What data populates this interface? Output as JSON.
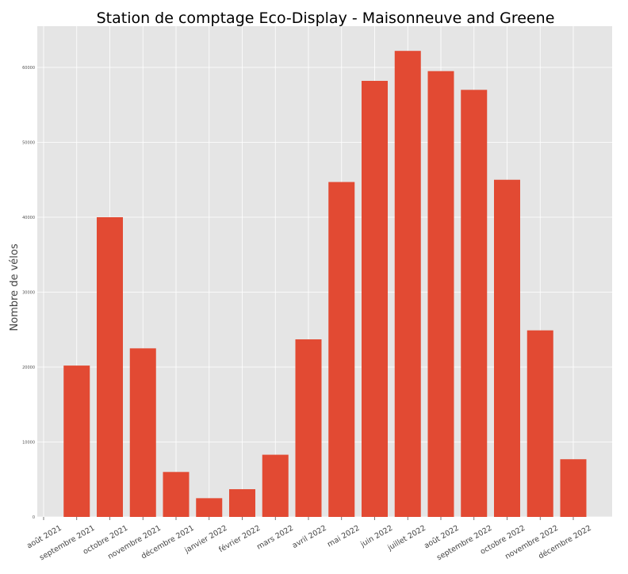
{
  "chart_data": {
    "type": "bar",
    "title": "Station de comptage Eco-Display - Maisonneuve and Greene",
    "xlabel": "",
    "ylabel": "Nombre de vélos",
    "categories": [
      "août 2021",
      "septembre 2021",
      "octobre 2021",
      "novembre 2021",
      "décembre 2021",
      "janvier 2022",
      "février 2022",
      "mars 2022",
      "avril 2022",
      "mai 2022",
      "juin 2022",
      "juillet 2022",
      "août 2022",
      "septembre 2022",
      "octobre 2022",
      "novembre 2022",
      "décembre 2022"
    ],
    "values": [
      0,
      20200,
      40000,
      22500,
      6000,
      2500,
      3700,
      8300,
      23700,
      44700,
      58200,
      62200,
      59500,
      57000,
      45000,
      24900,
      7700
    ],
    "ylim": [
      0,
      65500
    ],
    "yticks": [
      0,
      10000,
      20000,
      30000,
      40000,
      50000,
      60000
    ],
    "grid": true,
    "colors": {
      "bar": "#e24a33",
      "background": "#e5e5e5",
      "grid": "#ffffff"
    }
  }
}
